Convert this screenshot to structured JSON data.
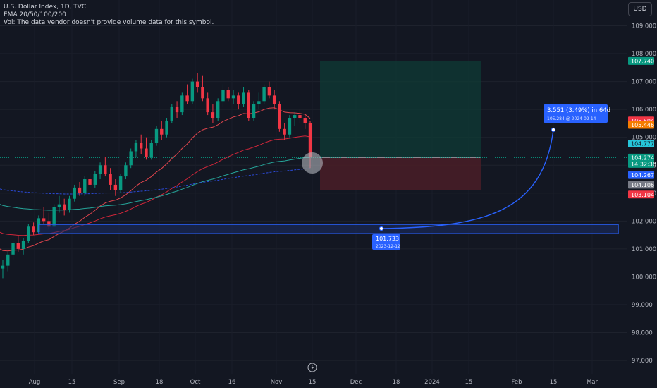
{
  "legend": {
    "symbol_line": "U.S. Dollar Index, 1D, TVC",
    "ema_line": "EMA 20/50/100/200",
    "vol_line": "Vol: The data vendor doesn't provide volume data for this symbol."
  },
  "currency_button": "USD",
  "colors": {
    "background": "#131722",
    "up_candle": "#089981",
    "down_candle": "#f23645",
    "ema20": "#e0454d",
    "ema50": "#d0263a",
    "ema100": "#26a69a",
    "ema200": "#2b4ad8",
    "projection": "#2962ff"
  },
  "chart_data": {
    "type": "candlestick",
    "symbol": "U.S. Dollar Index",
    "interval": "1D",
    "source": "TVC",
    "y_axis_ticks": [
      "109.000",
      "108.000",
      "107.000",
      "106.000",
      "105.000",
      "104.000",
      "103.000",
      "102.000",
      "101.000",
      "100.000",
      "99.000",
      "98.000",
      "97.000"
    ],
    "ylim": [
      96.8,
      109.7
    ],
    "x_axis_ticks": [
      "Aug",
      "15",
      "Sep",
      "18",
      "Oct",
      "16",
      "Nov",
      "15",
      "Dec",
      "18",
      "2024",
      "15",
      "Feb",
      "15",
      "Mar"
    ],
    "candles": [
      [
        100.3,
        100.6,
        99.95,
        100.4
      ],
      [
        100.4,
        100.9,
        100.2,
        100.8
      ],
      [
        100.8,
        101.3,
        100.6,
        101.2
      ],
      [
        101.2,
        101.5,
        100.9,
        101.0
      ],
      [
        101.0,
        101.4,
        100.8,
        101.3
      ],
      [
        101.3,
        101.9,
        101.2,
        101.8
      ],
      [
        101.8,
        101.95,
        101.5,
        101.6
      ],
      [
        101.6,
        102.2,
        101.6,
        102.1
      ],
      [
        102.1,
        102.5,
        101.9,
        102.0
      ],
      [
        102.0,
        102.3,
        101.7,
        101.8
      ],
      [
        101.8,
        102.6,
        101.8,
        102.5
      ],
      [
        102.5,
        102.9,
        102.3,
        102.6
      ],
      [
        102.6,
        102.8,
        102.2,
        102.4
      ],
      [
        102.4,
        102.9,
        102.3,
        102.8
      ],
      [
        102.8,
        103.3,
        102.7,
        103.2
      ],
      [
        103.2,
        103.4,
        102.9,
        103.0
      ],
      [
        103.0,
        103.6,
        102.9,
        103.5
      ],
      [
        103.5,
        103.7,
        103.2,
        103.3
      ],
      [
        103.3,
        103.8,
        103.2,
        103.7
      ],
      [
        103.7,
        104.1,
        103.5,
        104.0
      ],
      [
        104.0,
        104.3,
        103.6,
        103.7
      ],
      [
        103.7,
        103.9,
        103.1,
        103.3
      ],
      [
        103.3,
        103.5,
        102.9,
        103.1
      ],
      [
        103.1,
        103.7,
        103.0,
        103.6
      ],
      [
        103.6,
        104.1,
        103.5,
        104.0
      ],
      [
        104.0,
        104.6,
        103.9,
        104.5
      ],
      [
        104.5,
        104.9,
        104.3,
        104.8
      ],
      [
        104.8,
        105.1,
        104.4,
        104.6
      ],
      [
        104.6,
        105.0,
        104.2,
        104.3
      ],
      [
        104.3,
        104.9,
        104.2,
        104.8
      ],
      [
        104.8,
        105.4,
        104.7,
        105.3
      ],
      [
        105.3,
        105.6,
        104.9,
        105.1
      ],
      [
        105.1,
        105.7,
        105.0,
        105.6
      ],
      [
        105.6,
        106.2,
        105.5,
        106.1
      ],
      [
        106.1,
        106.3,
        105.7,
        105.9
      ],
      [
        105.9,
        106.6,
        105.8,
        106.5
      ],
      [
        106.5,
        106.9,
        106.2,
        106.3
      ],
      [
        106.3,
        107.1,
        106.2,
        107.0
      ],
      [
        107.0,
        107.3,
        106.6,
        106.8
      ],
      [
        106.8,
        107.2,
        106.3,
        106.4
      ],
      [
        106.4,
        106.6,
        105.8,
        105.9
      ],
      [
        105.9,
        106.2,
        105.5,
        105.7
      ],
      [
        105.7,
        106.4,
        105.6,
        106.3
      ],
      [
        106.3,
        106.9,
        106.1,
        106.7
      ],
      [
        106.7,
        106.8,
        106.3,
        106.4
      ],
      [
        106.4,
        106.7,
        106.2,
        106.5
      ],
      [
        106.5,
        106.6,
        106.0,
        106.2
      ],
      [
        106.2,
        106.8,
        106.1,
        106.6
      ],
      [
        106.6,
        106.7,
        105.6,
        105.7
      ],
      [
        105.7,
        106.3,
        105.6,
        106.2
      ],
      [
        106.2,
        106.6,
        106.0,
        106.3
      ],
      [
        106.3,
        106.9,
        106.2,
        106.8
      ],
      [
        106.8,
        107.0,
        106.4,
        106.5
      ],
      [
        106.5,
        106.7,
        106.0,
        106.2
      ],
      [
        106.2,
        106.3,
        105.2,
        105.3
      ],
      [
        105.3,
        105.5,
        104.9,
        105.1
      ],
      [
        105.1,
        105.8,
        105.0,
        105.7
      ],
      [
        105.7,
        105.9,
        105.4,
        105.8
      ],
      [
        105.8,
        106.0,
        105.5,
        105.7
      ],
      [
        105.7,
        105.8,
        105.3,
        105.5
      ],
      [
        105.5,
        105.6,
        103.9,
        104.3
      ]
    ],
    "ema_series": [
      "EMA 20",
      "EMA 50",
      "EMA 100",
      "EMA 200"
    ],
    "price_labels": [
      {
        "value": "107.740",
        "y": 107.74,
        "bg": "#089981",
        "fg": "#ffffff"
      },
      {
        "value": "105.604",
        "y": 105.604,
        "bg": "#f23645",
        "fg": "#ffffff"
      },
      {
        "value": "105.446",
        "y": 105.446,
        "bg": "#f57c00",
        "fg": "#ffffff"
      },
      {
        "value": "104.777",
        "y": 104.777,
        "bg": "#26c6da",
        "fg": "#131722"
      },
      {
        "value": "104.274",
        "y": 104.274,
        "bg": "#089981",
        "fg": "#ffffff",
        "sub": "14:32:38"
      },
      {
        "value": "104.267",
        "y": 103.65,
        "bg": "#2962ff",
        "fg": "#ffffff"
      },
      {
        "value": "104.106",
        "y": 103.3,
        "bg": "#787b86",
        "fg": "#ffffff"
      },
      {
        "value": "103.104",
        "y": 102.95,
        "bg": "#f23645",
        "fg": "#ffffff"
      }
    ],
    "position": {
      "entry": 104.274,
      "target": 107.74,
      "stop": 103.1
    },
    "support_zone": {
      "low": 101.55,
      "high": 101.88
    },
    "projection": {
      "start_value": "101.733",
      "start_date": "2023-12-12",
      "end_label": "3.551 (3.49%) in 64d",
      "end_sub": "105.284 @ 2024-02-14"
    }
  }
}
